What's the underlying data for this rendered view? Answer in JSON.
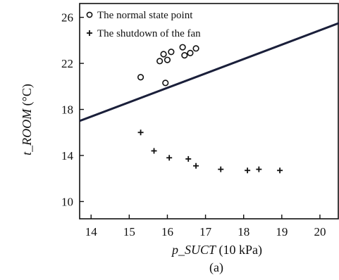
{
  "chart_data": {
    "type": "scatter",
    "caption": "(a)",
    "xlabel": {
      "var": "p_SUCT",
      "unit": " (10 kPa)"
    },
    "ylabel": {
      "var": "t_ROOM",
      "unit": " (°C)"
    },
    "xlim": [
      13.7,
      20.5
    ],
    "ylim": [
      8.5,
      27.2
    ],
    "xticks": [
      "14",
      "15",
      "16",
      "17",
      "18",
      "19",
      "20"
    ],
    "yticks": [
      "10",
      "14",
      "18",
      "22",
      "26"
    ],
    "grid": false,
    "legend_position": "top-left",
    "series": [
      {
        "name": "The normal state point",
        "marker": "circle",
        "points": [
          [
            15.3,
            20.8
          ],
          [
            15.8,
            22.2
          ],
          [
            15.9,
            22.8
          ],
          [
            16.0,
            22.3
          ],
          [
            16.1,
            23.0
          ],
          [
            16.4,
            23.4
          ],
          [
            16.45,
            22.7
          ],
          [
            16.6,
            22.9
          ],
          [
            16.75,
            23.3
          ],
          [
            15.95,
            20.3
          ]
        ]
      },
      {
        "name": "The shutdown of the fan",
        "marker": "plus",
        "points": [
          [
            15.3,
            16.0
          ],
          [
            15.65,
            14.4
          ],
          [
            16.05,
            13.8
          ],
          [
            16.55,
            13.7
          ],
          [
            16.75,
            13.1
          ],
          [
            17.4,
            12.8
          ],
          [
            18.1,
            12.7
          ],
          [
            18.4,
            12.8
          ],
          [
            18.95,
            12.7
          ]
        ]
      }
    ],
    "boundary_line": {
      "x": [
        13.7,
        20.5
      ],
      "y": [
        17.0,
        25.5
      ]
    }
  }
}
